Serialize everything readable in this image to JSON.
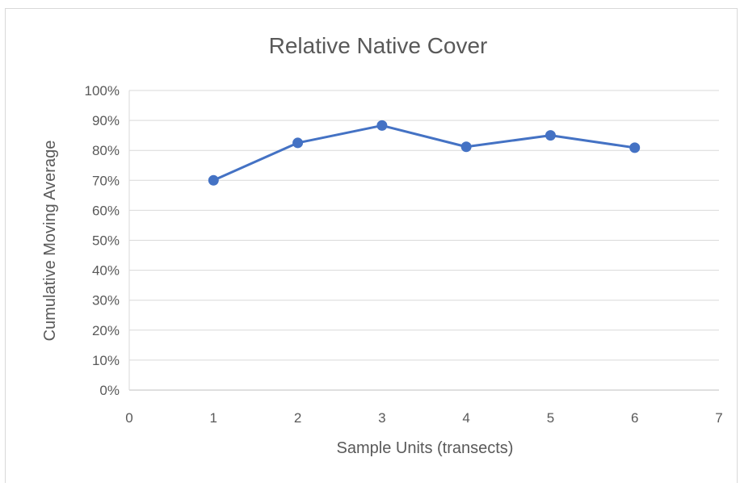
{
  "chart_data": {
    "type": "scatter",
    "title": "Relative Native Cover",
    "xlabel": "Sample Units (transects)",
    "ylabel": "Cumulative Moving Average",
    "xlim": [
      0,
      7
    ],
    "ylim": [
      0,
      100
    ],
    "x_ticks": [
      "0",
      "1",
      "2",
      "3",
      "4",
      "5",
      "6",
      "7"
    ],
    "y_ticks": [
      "0%",
      "10%",
      "20%",
      "30%",
      "40%",
      "50%",
      "60%",
      "70%",
      "80%",
      "90%",
      "100%"
    ],
    "grid": true,
    "legend": "none",
    "line_color": "#4472C4",
    "series": [
      {
        "x": [
          1,
          2,
          3,
          4,
          5,
          6
        ],
        "y": [
          70,
          82.5,
          88.3,
          81.2,
          85,
          80.9
        ]
      }
    ]
  }
}
